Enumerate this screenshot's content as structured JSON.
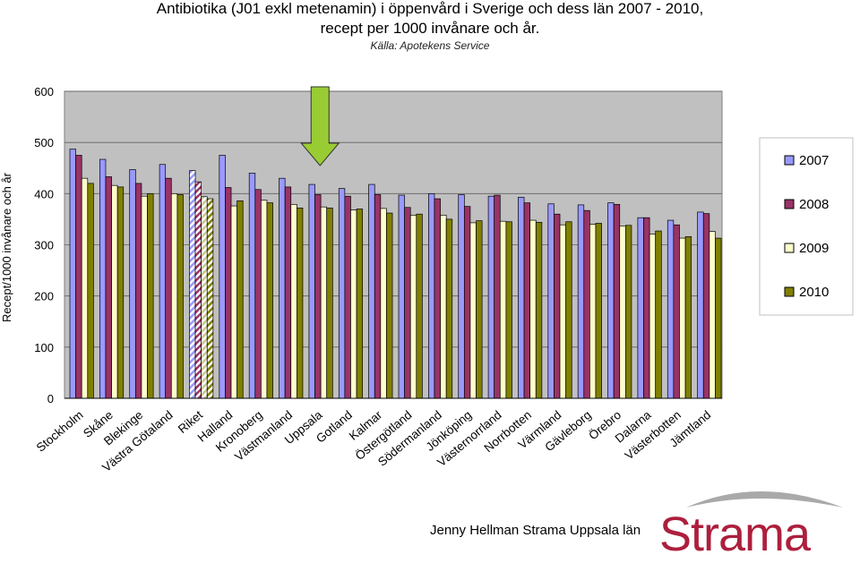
{
  "title_line1": "Antibiotika (J01 exkl metenamin) i öppenvård i Sverige och dess län 2007 - 2010,",
  "title_line2": "recept per 1000 invånare och år.",
  "subtitle": "Källa: Apotekens Service",
  "footer": "Jenny Hellman Strama Uppsala län",
  "logo_text": "Strama",
  "colors": {
    "s2007": "#9999ff",
    "s2008": "#993366",
    "s2009": "#ffffcc",
    "s2010": "#808000",
    "plot_bg": "#c0c0c0",
    "logo": "#ad1f3d",
    "arrow": "#99cc33"
  },
  "chart_data": {
    "type": "bar",
    "ylabel": "Recept/1000 invånare och år",
    "ylim": [
      0,
      600
    ],
    "yticks": [
      0,
      100,
      200,
      300,
      400,
      500,
      600
    ],
    "grid": true,
    "legend_position": "right",
    "highlight_category": "Riket",
    "arrow_category": "Uppsala",
    "categories": [
      "Stockholm",
      "Skåne",
      "Blekinge",
      "Västra Götaland",
      "Riket",
      "Halland",
      "Kronoberg",
      "Västmanland",
      "Uppsala",
      "Gotland",
      "Kalmar",
      "Östergötland",
      "Södermanland",
      "Jönköping",
      "Västernorrland",
      "Norrbotten",
      "Värmland",
      "Gävleborg",
      "Örebro",
      "Dalarna",
      "Västerbotten",
      "Jämtland"
    ],
    "series": [
      {
        "name": "2007",
        "values": [
          487,
          467,
          447,
          457,
          445,
          475,
          440,
          430,
          418,
          410,
          418,
          397,
          400,
          398,
          395,
          393,
          380,
          378,
          382,
          353,
          348,
          364
        ]
      },
      {
        "name": "2008",
        "values": [
          475,
          433,
          420,
          430,
          423,
          412,
          408,
          413,
          398,
          395,
          398,
          373,
          390,
          375,
          397,
          382,
          360,
          367,
          379,
          353,
          339,
          361
        ]
      },
      {
        "name": "2009",
        "values": [
          430,
          416,
          395,
          400,
          394,
          376,
          387,
          379,
          374,
          368,
          371,
          358,
          358,
          343,
          346,
          348,
          339,
          340,
          337,
          321,
          313,
          326
        ]
      },
      {
        "name": "2010",
        "values": [
          420,
          413,
          400,
          398,
          390,
          386,
          382,
          372,
          372,
          370,
          362,
          360,
          350,
          347,
          345,
          344,
          345,
          342,
          338,
          327,
          316,
          313
        ]
      }
    ]
  }
}
